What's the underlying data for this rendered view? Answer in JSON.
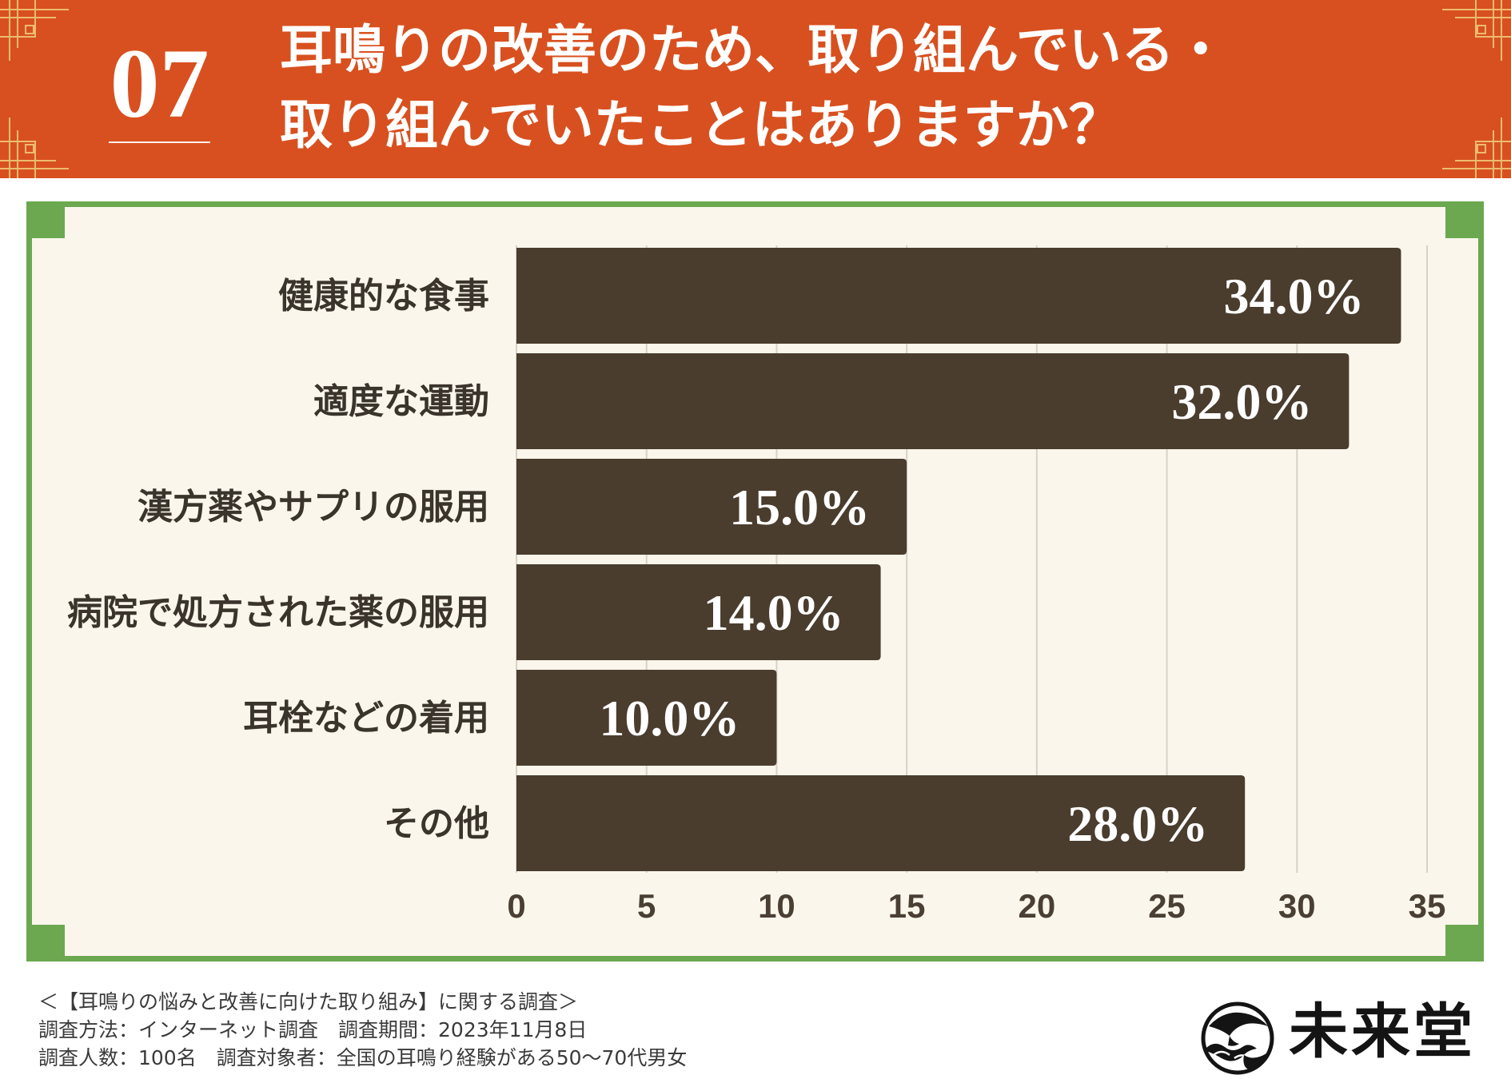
{
  "header": {
    "number": "07",
    "title_line_1": "耳鳴りの改善のため、取り組んでいる・",
    "title_line_2": "取り組んでいたことはありますか？"
  },
  "chart_data": {
    "type": "bar",
    "orientation": "horizontal",
    "categories": [
      "健康的な食事",
      "適度な運動",
      "漢方薬やサプリの服用",
      "病院で処方された薬の服用",
      "耳栓などの着用",
      "その他"
    ],
    "values": [
      34.0,
      32.0,
      15.0,
      14.0,
      10.0,
      28.0
    ],
    "value_labels": [
      "34.0%",
      "32.0%",
      "15.0%",
      "14.0%",
      "10.0%",
      "28.0%"
    ],
    "xlim": [
      0,
      35
    ],
    "xticks": [
      0,
      5,
      10,
      15,
      20,
      25,
      30,
      35
    ],
    "grid": true
  },
  "survey": {
    "title": "＜【耳鳴りの悩みと改善に向けた取り組み】に関する調査＞",
    "method_period": "調査方法：インターネット調査　調査期間：2023年11月8日",
    "sample": "調査人数：100名　調査対象者：全国の耳鳴り経験がある50～70代男女"
  },
  "brand": {
    "name": "未来堂",
    "emblem": "crane-wave-emblem-icon"
  },
  "colors": {
    "header_bg": "#D8501F",
    "ornament": "#EDBB70",
    "frame": "#6BA84F",
    "panel_bg": "#FAF6EC",
    "bar": "#4A3D2E",
    "value_label": "#FFFFFF"
  }
}
